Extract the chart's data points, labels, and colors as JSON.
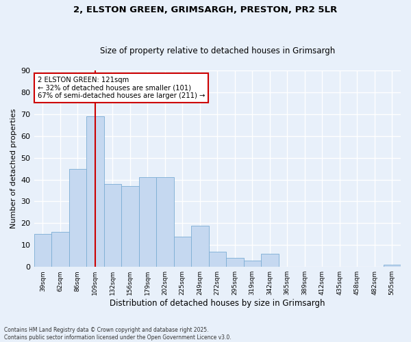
{
  "title_line1": "2, ELSTON GREEN, GRIMSARGH, PRESTON, PR2 5LR",
  "title_line2": "Size of property relative to detached houses in Grimsargh",
  "xlabel": "Distribution of detached houses by size in Grimsargh",
  "ylabel": "Number of detached properties",
  "categories": [
    "39sqm",
    "62sqm",
    "86sqm",
    "109sqm",
    "132sqm",
    "156sqm",
    "179sqm",
    "202sqm",
    "225sqm",
    "249sqm",
    "272sqm",
    "295sqm",
    "319sqm",
    "342sqm",
    "365sqm",
    "389sqm",
    "412sqm",
    "435sqm",
    "458sqm",
    "482sqm",
    "505sqm"
  ],
  "values": [
    15,
    16,
    45,
    69,
    38,
    37,
    41,
    41,
    14,
    19,
    7,
    4,
    3,
    6,
    0,
    0,
    0,
    0,
    0,
    0,
    1
  ],
  "bar_color": "#c5d8f0",
  "bar_edge_color": "#7badd4",
  "background_color": "#e8f0fa",
  "grid_color": "#ffffff",
  "vline_index": 3,
  "vline_color": "#cc0000",
  "annotation_text": "2 ELSTON GREEN: 121sqm\n← 32% of detached houses are smaller (101)\n67% of semi-detached houses are larger (211) →",
  "annotation_box_color": "#ffffff",
  "annotation_box_edge": "#cc0000",
  "ylim": [
    0,
    90
  ],
  "yticks": [
    0,
    10,
    20,
    30,
    40,
    50,
    60,
    70,
    80,
    90
  ],
  "footer": "Contains HM Land Registry data © Crown copyright and database right 2025.\nContains public sector information licensed under the Open Government Licence v3.0."
}
